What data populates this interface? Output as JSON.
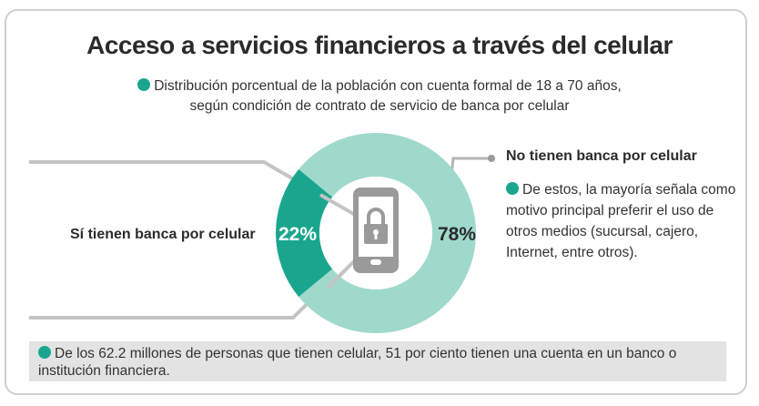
{
  "title": "Acceso a servicios financieros a través del celular",
  "subtitle": {
    "line1": "Distribución porcentual de la población con cuenta formal de 18 a 70 años,",
    "line2": "según condición de contrato de servicio de banca por celular"
  },
  "labels": {
    "left": "Sí tienen banca por celular",
    "right_title": "No tienen banca por celular",
    "right_note": "De estos, la mayoría señala como motivo principal preferir el uso de otros medios (sucursal, cajero, Internet, entre otros)."
  },
  "footer": "De los 62.2 millones de personas que tienen celular, 51 por ciento tienen una cuenta en un banco o institución financiera.",
  "icons": {
    "center": "locked-phone-icon"
  },
  "colors": {
    "accent": "#1aa68e",
    "light": "#9fd9cc",
    "line": "#c4c4c4",
    "bullet": "#1aa68e"
  },
  "chart_data": {
    "type": "pie",
    "categories": [
      "Sí tienen banca por celular",
      "No tienen banca por celular"
    ],
    "values": [
      22,
      78
    ],
    "data_labels": [
      "22%",
      "78%"
    ],
    "title": "Acceso a servicios financieros a través del celular"
  }
}
